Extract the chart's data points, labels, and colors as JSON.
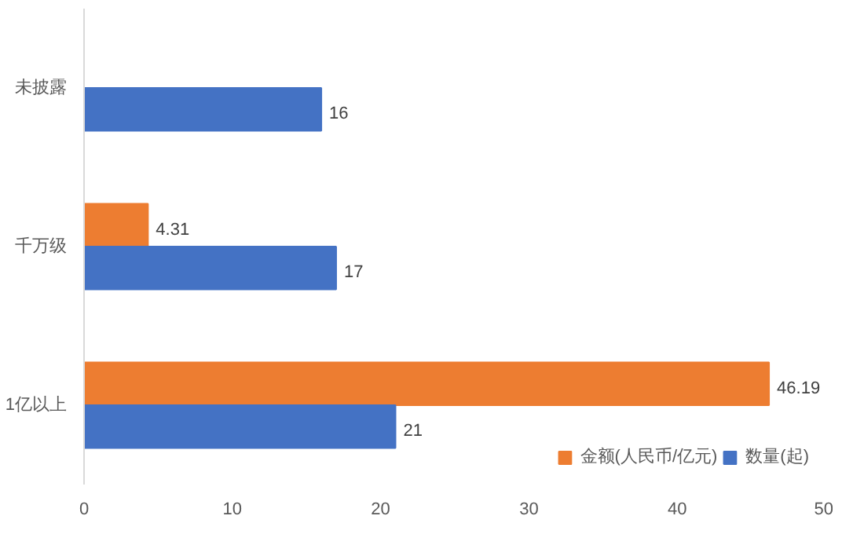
{
  "chart_data": {
    "type": "bar",
    "orientation": "horizontal",
    "categories": [
      "未披露",
      "千万级",
      "1亿以上"
    ],
    "series": [
      {
        "name": "金额(人民币/亿元)",
        "color": "#ed7d31",
        "values": [
          null,
          4.31,
          46.19
        ]
      },
      {
        "name": "数量(起)",
        "color": "#4472c4",
        "values": [
          16,
          17,
          21
        ]
      }
    ],
    "xlim": [
      0,
      50
    ],
    "xticks": [
      0,
      10,
      20,
      30,
      40,
      50
    ],
    "grid": false,
    "legend": "bottom",
    "data_labels": true
  }
}
